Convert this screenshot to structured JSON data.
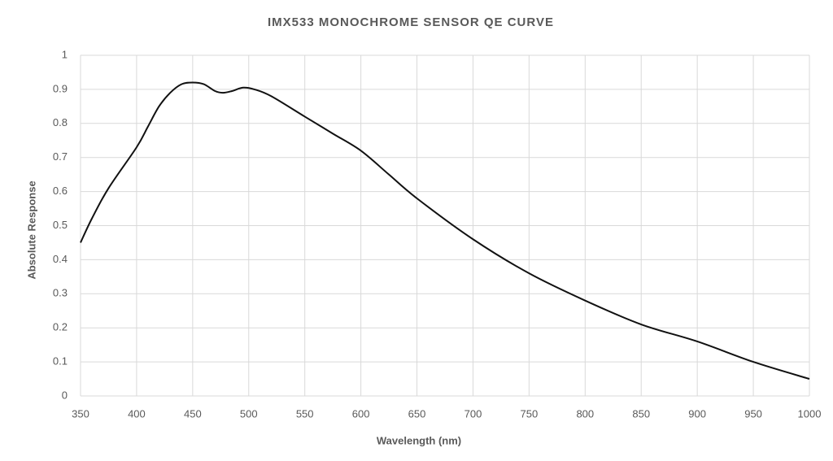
{
  "chart_data": {
    "type": "line",
    "title": "IMX533 MONOCHROME SENSOR QE CURVE",
    "x_label": "Wavelength (nm)",
    "y_label": "Absolute Response",
    "x": [
      350,
      360,
      375,
      400,
      410,
      420,
      430,
      440,
      450,
      460,
      470,
      477,
      485,
      495,
      505,
      520,
      550,
      575,
      600,
      625,
      650,
      700,
      750,
      800,
      850,
      900,
      950,
      1000
    ],
    "series": [
      {
        "name": "QE",
        "color": "#111111",
        "values": [
          0.45,
          0.52,
          0.61,
          0.73,
          0.79,
          0.85,
          0.89,
          0.915,
          0.92,
          0.915,
          0.895,
          0.89,
          0.895,
          0.905,
          0.9,
          0.88,
          0.82,
          0.77,
          0.72,
          0.65,
          0.58,
          0.46,
          0.36,
          0.28,
          0.21,
          0.16,
          0.1,
          0.05
        ]
      }
    ],
    "xlim": [
      350,
      1000
    ],
    "xticks": [
      350,
      400,
      450,
      500,
      550,
      600,
      650,
      700,
      750,
      800,
      850,
      900,
      950,
      1000
    ],
    "ylim": [
      0,
      1
    ],
    "yticks": [
      0,
      0.1,
      0.2,
      0.3,
      0.4,
      0.5,
      0.6,
      0.7,
      0.8,
      0.9,
      1
    ],
    "grid": true
  }
}
